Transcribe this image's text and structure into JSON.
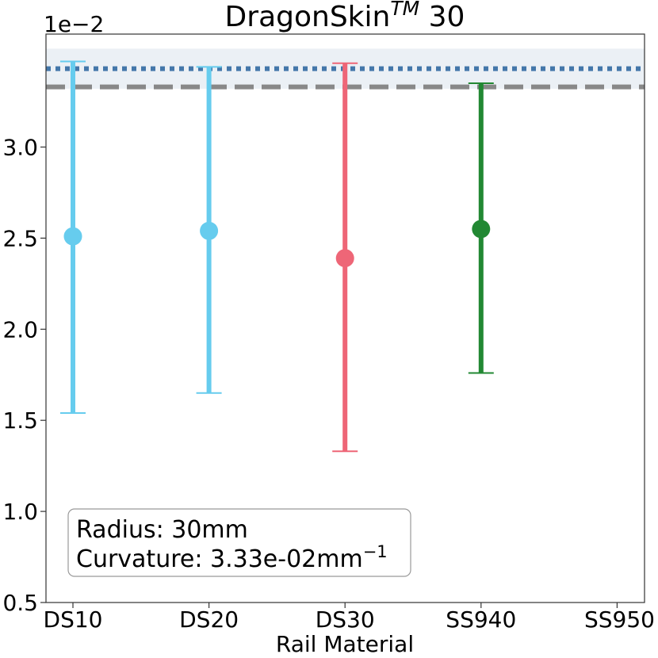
{
  "chart_data": {
    "type": "errorbar",
    "title": "DragonSkin",
    "title_superscript": "TM",
    "title_suffix": "30",
    "xlabel": "Rail Material",
    "ylabel": "",
    "y_multiplier_label": "1e−2",
    "ylim": [
      0.005,
      0.0362
    ],
    "y_ticks": [
      0.005,
      0.01,
      0.015,
      0.02,
      0.025,
      0.03
    ],
    "y_tick_labels": [
      "0.5",
      "1.0",
      "1.5",
      "2.0",
      "2.5",
      "3.0"
    ],
    "categories": [
      "DS10",
      "DS20",
      "DS30",
      "SS940",
      "SS950"
    ],
    "points": [
      {
        "category": "DS10",
        "value": 0.0251,
        "lower": 0.0154,
        "upper": 0.0347,
        "color": "#66ccee"
      },
      {
        "category": "DS20",
        "value": 0.0254,
        "lower": 0.0165,
        "upper": 0.0344,
        "color": "#66ccee"
      },
      {
        "category": "DS30",
        "value": 0.0239,
        "lower": 0.0133,
        "upper": 0.0346,
        "color": "#ee6677"
      },
      {
        "category": "SS940",
        "value": 0.0255,
        "lower": 0.0176,
        "upper": 0.0335,
        "color": "#228833"
      }
    ],
    "reference_lines": [
      {
        "style": "dotted",
        "value": 0.0343,
        "color": "#4477aa"
      },
      {
        "style": "dashed",
        "value": 0.0333,
        "color": "#888888"
      }
    ],
    "shaded_band": {
      "lower": 0.0332,
      "upper": 0.0354,
      "color": "#dde6ef"
    },
    "annotation": {
      "line1": "Radius: 30mm",
      "line2_prefix": "Curvature: 3.33e-02mm",
      "line2_superscript": "−1"
    },
    "grid": false
  }
}
